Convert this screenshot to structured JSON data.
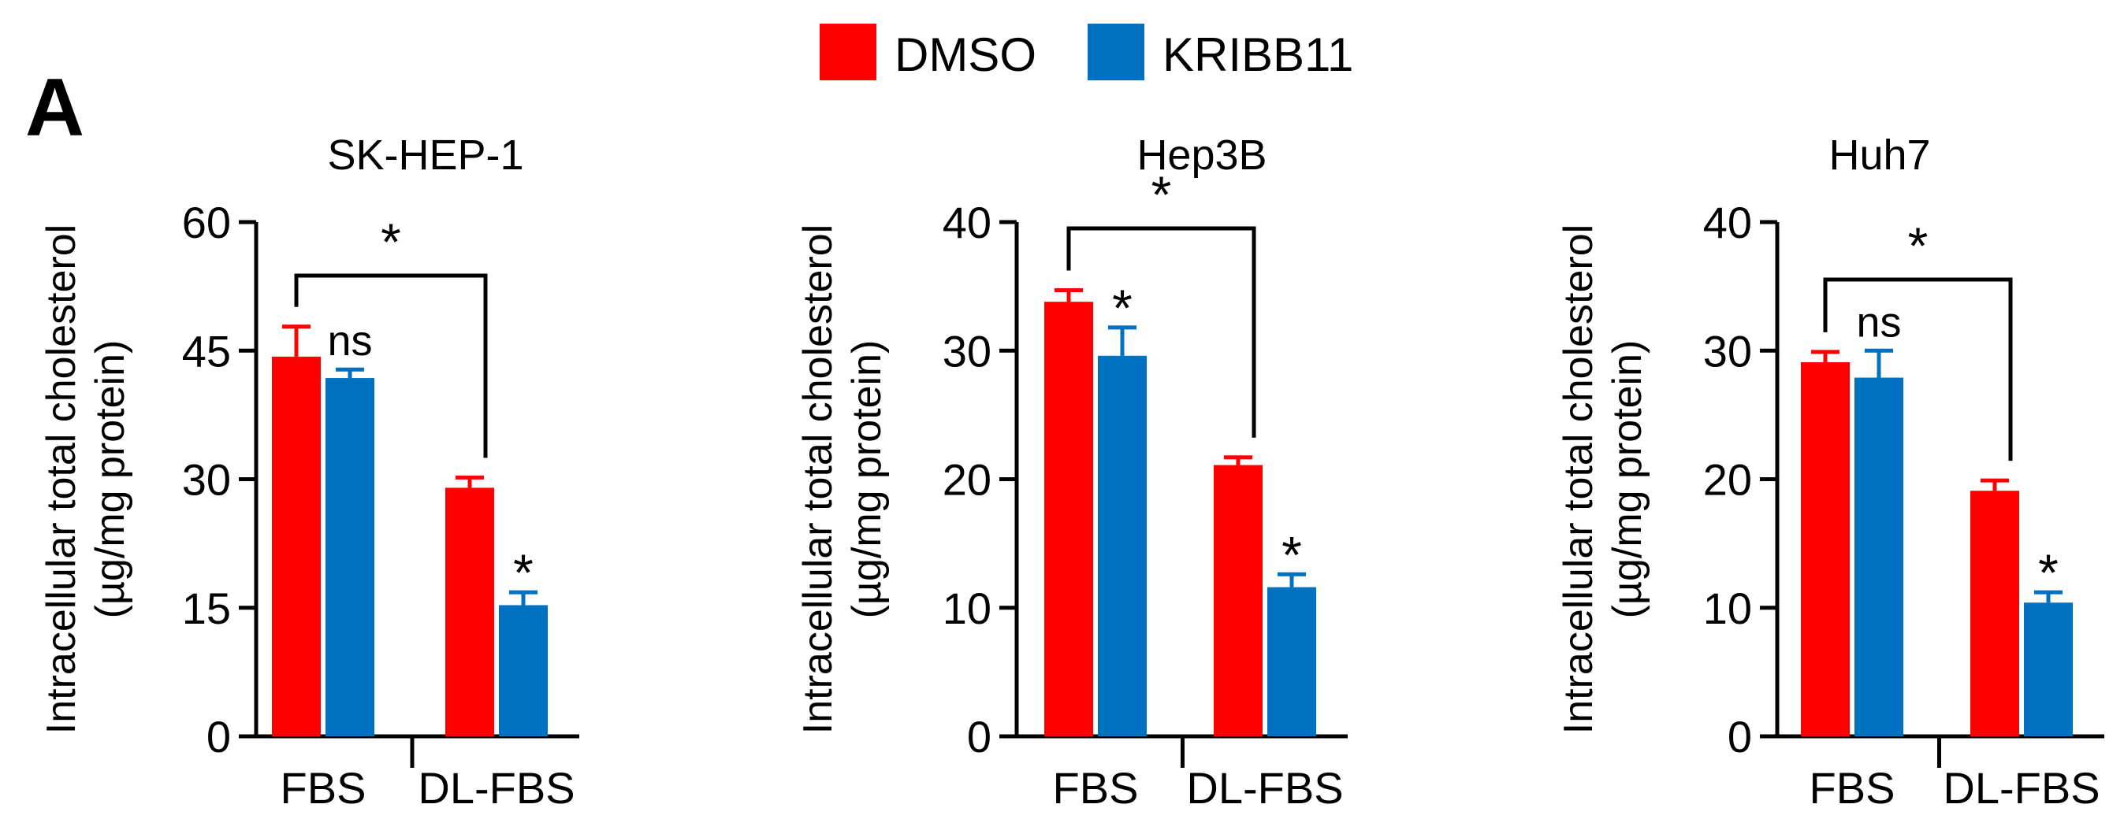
{
  "panel_letter": "A",
  "legend": [
    {
      "label": "DMSO",
      "color": "#ff0000"
    },
    {
      "label": "KRIBB11",
      "color": "#0070c0"
    }
  ],
  "colors": {
    "DMSO": "#ff0000",
    "KRIBB11": "#0070c0",
    "axis": "#000000"
  },
  "chart_data": [
    {
      "type": "bar",
      "title": "SK-HEP-1",
      "ylabel": [
        "Intracellular total cholesterol",
        "(µg/mg protein)"
      ],
      "ylim": [
        0,
        60
      ],
      "yticks": [
        0,
        15,
        30,
        45,
        60
      ],
      "categories": [
        "FBS",
        "DL-FBS"
      ],
      "series": [
        {
          "name": "DMSO",
          "values": [
            44.3,
            29.0
          ],
          "errors": [
            3.5,
            1.2
          ]
        },
        {
          "name": "KRIBB11",
          "values": [
            41.8,
            15.3
          ],
          "errors": [
            1.0,
            1.5
          ]
        }
      ],
      "annotations": {
        "bracket": "*",
        "KRIBB11_marks": [
          "ns",
          "*"
        ]
      }
    },
    {
      "type": "bar",
      "title": "Hep3B",
      "ylabel": [
        "Intracellular total cholesterol",
        "(µg/mg protein)"
      ],
      "ylim": [
        0,
        40
      ],
      "yticks": [
        0,
        10,
        20,
        30,
        40
      ],
      "categories": [
        "FBS",
        "DL-FBS"
      ],
      "series": [
        {
          "name": "DMSO",
          "values": [
            33.8,
            21.1
          ],
          "errors": [
            0.9,
            0.6
          ]
        },
        {
          "name": "KRIBB11",
          "values": [
            29.6,
            11.6
          ],
          "errors": [
            2.2,
            1.0
          ]
        }
      ],
      "annotations": {
        "bracket": "*",
        "KRIBB11_marks": [
          "*",
          "*"
        ]
      }
    },
    {
      "type": "bar",
      "title": "Huh7",
      "ylabel": [
        "Intracellular total cholesterol",
        "(µg/mg protein)"
      ],
      "ylim": [
        0,
        40
      ],
      "yticks": [
        0,
        10,
        20,
        30,
        40
      ],
      "categories": [
        "FBS",
        "DL-FBS"
      ],
      "series": [
        {
          "name": "DMSO",
          "values": [
            29.1,
            19.1
          ],
          "errors": [
            0.8,
            0.8
          ]
        },
        {
          "name": "KRIBB11",
          "values": [
            27.9,
            10.4
          ],
          "errors": [
            2.1,
            0.8
          ]
        }
      ],
      "annotations": {
        "bracket": "*",
        "KRIBB11_marks": [
          "ns",
          "*"
        ]
      }
    }
  ]
}
